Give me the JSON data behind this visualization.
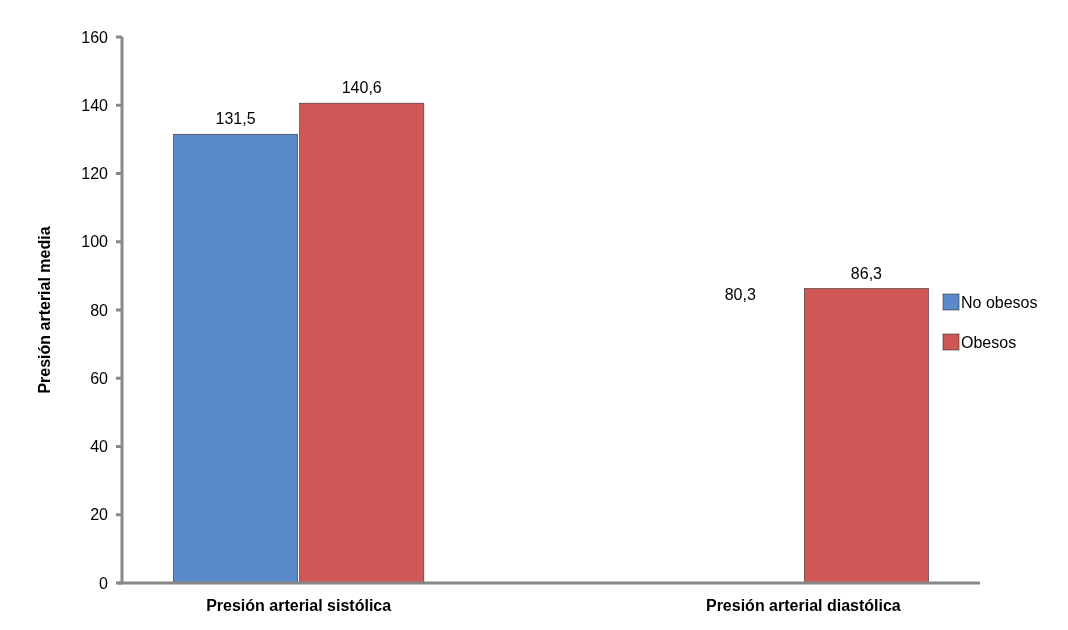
{
  "chart_data": {
    "type": "bar",
    "ylabel": "Presión arterial media",
    "categories": [
      "Presión arterial sistólica",
      "Presión arterial diastólica"
    ],
    "series": [
      {
        "name": "No obesos",
        "color": "#5a8acb",
        "values": [
          131.5,
          null
        ],
        "value_labels": [
          "131,5",
          null
        ]
      },
      {
        "name": "Obesos",
        "color": "#cf5856",
        "values": [
          140.6,
          86.3
        ],
        "value_labels": [
          "140,6",
          "86,3"
        ]
      }
    ],
    "annotations": [
      "80,3"
    ],
    "ylim": [
      0,
      160
    ],
    "yticks": [
      0,
      20,
      40,
      60,
      80,
      100,
      120,
      140,
      160
    ],
    "grid": false,
    "legend": "right"
  }
}
